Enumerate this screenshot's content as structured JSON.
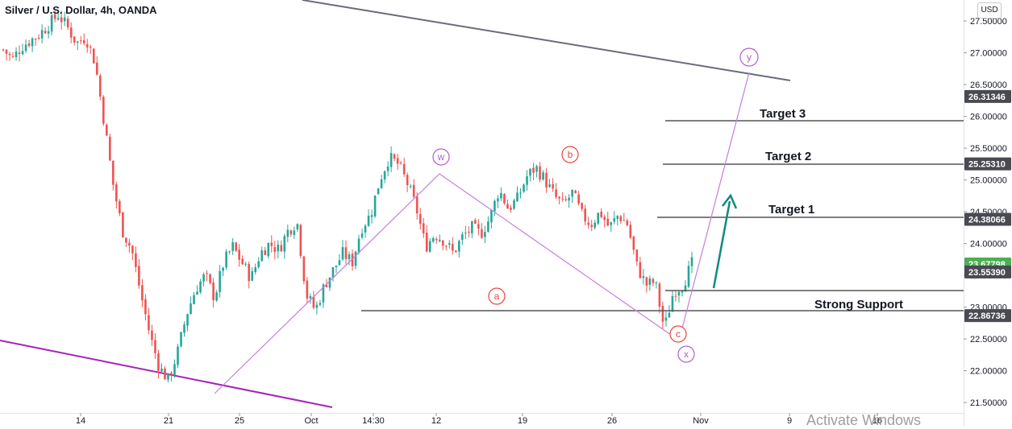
{
  "header": {
    "title": "Silver / U.S. Dollar, 4h, OANDA",
    "currency_button": "USD"
  },
  "watermark": "Activate Windows",
  "colors": {
    "up": "#26a69a",
    "down": "#ef5350",
    "wave_lines": "#c77ddb",
    "support_line": "#555555",
    "channel_top": "#6b6b78",
    "channel_bottom": "#a324b5",
    "arrow": "#0f8a80",
    "wave_label_red": "#e8463c",
    "wave_label_purple": "#b05fd0",
    "last_price": "#4caf50"
  },
  "chart_data": {
    "type": "candlestick",
    "symbol": "Silver / U.S. Dollar",
    "interval": "4h",
    "source": "OANDA",
    "x_ticks": [
      "14",
      "21",
      "25",
      "Oct",
      "14:30",
      "12",
      "19",
      "26",
      "Nov",
      "9",
      "16"
    ],
    "y_ticks": [
      "27.50000",
      "27.00000",
      "26.50000",
      "26.00000",
      "25.50000",
      "25.00000",
      "24.50000",
      "24.00000",
      "23.50000",
      "23.00000",
      "22.50000",
      "22.00000",
      "21.50000"
    ],
    "y_range": [
      21.35,
      27.83
    ],
    "price_tags": [
      {
        "label": "26.31346",
        "value": 26.31346
      },
      {
        "label": "25.25310",
        "value": 25.2531
      },
      {
        "label": "24.38066",
        "value": 24.38066
      },
      {
        "label": "23.67798",
        "value": 23.67798,
        "last": true
      },
      {
        "label": "23.55390",
        "value": 23.5539
      },
      {
        "label": "22.86736",
        "value": 22.86736
      }
    ],
    "levels": [
      {
        "label": "Target 3",
        "value": 26.31346
      },
      {
        "label": "Target 2",
        "value": 25.2531
      },
      {
        "label": "Target 1",
        "value": 24.38066
      },
      {
        "label": "",
        "value": 23.5539
      },
      {
        "label": "Strong Support",
        "value": 22.86736
      }
    ],
    "wave_labels": [
      {
        "label": "w",
        "style": "purple"
      },
      {
        "label": "a",
        "style": "red"
      },
      {
        "label": "b",
        "style": "red"
      },
      {
        "label": "c",
        "style": "red"
      },
      {
        "label": "x",
        "style": "purple"
      },
      {
        "label": "y",
        "style": "purple"
      }
    ],
    "price_path": [
      27.05,
      26.9,
      27.1,
      27.2,
      27.3,
      27.45,
      27.6,
      27.4,
      27.15,
      27.25,
      26.85,
      25.9,
      24.9,
      24.2,
      23.9,
      23.2,
      22.55,
      22.05,
      21.85,
      22.3,
      22.9,
      23.3,
      23.5,
      23.15,
      23.7,
      23.95,
      23.7,
      23.45,
      23.85,
      24.0,
      23.9,
      24.2,
      24.35,
      23.2,
      22.95,
      23.35,
      23.6,
      23.85,
      23.7,
      24.25,
      24.45,
      25.0,
      25.35,
      25.25,
      24.95,
      24.55,
      23.95,
      24.15,
      24.05,
      23.85,
      24.1,
      24.25,
      24.15,
      24.4,
      24.85,
      24.55,
      24.7,
      25.05,
      25.2,
      25.0,
      24.75,
      24.6,
      24.8,
      24.45,
      24.3,
      24.5,
      24.25,
      24.45,
      24.3,
      23.65,
      23.35,
      23.4,
      22.65,
      23.25,
      23.35,
      23.68
    ]
  }
}
